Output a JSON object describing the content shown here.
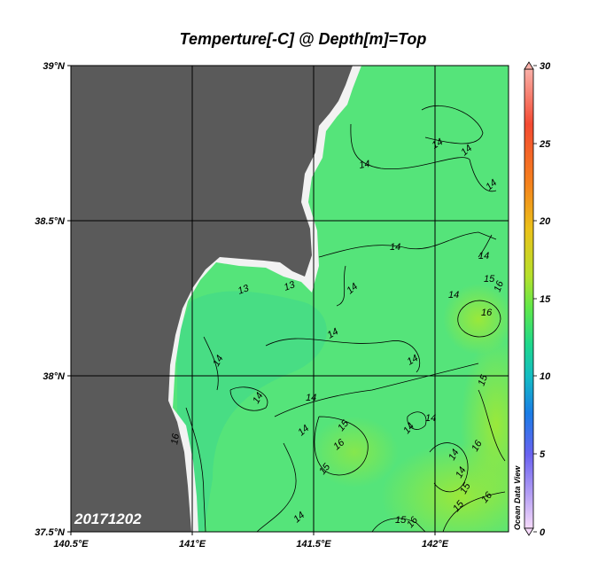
{
  "title": "Temperture[-C] @ Depth[m]=Top",
  "date_label": "20171202",
  "brand": "Ocean Data View",
  "y_ticks": [
    "39°N",
    "38.5°N",
    "38°N",
    "37.5°N"
  ],
  "x_ticks": [
    "140.5°E",
    "141°E",
    "141.5°E",
    "142°E"
  ],
  "colorbar": {
    "ticks": [
      "30",
      "25",
      "20",
      "15",
      "10",
      "5",
      "0"
    ],
    "colors": [
      "#f9a8a0",
      "#f44030",
      "#f58a1c",
      "#e8c41a",
      "#b9e02a",
      "#5ee84a",
      "#20d88e",
      "#12b8c6",
      "#1a78e6",
      "#6a60f0",
      "#b49cf4",
      "#f4d4fa"
    ]
  },
  "colors": {
    "land": "#5a5a5a",
    "sea": "#55e47a",
    "coast": "#f2f2f2",
    "warm": "#8ae83c"
  },
  "contour_labels": [
    "14",
    "14",
    "14",
    "14",
    "14",
    "14",
    "14",
    "13",
    "13",
    "14",
    "14",
    "15",
    "16",
    "16",
    "14",
    "14",
    "14",
    "14",
    "15",
    "14",
    "14",
    "14",
    "16",
    "15",
    "14",
    "14",
    "16",
    "15",
    "16",
    "15",
    "14",
    "16",
    "15",
    "15",
    "16"
  ]
}
